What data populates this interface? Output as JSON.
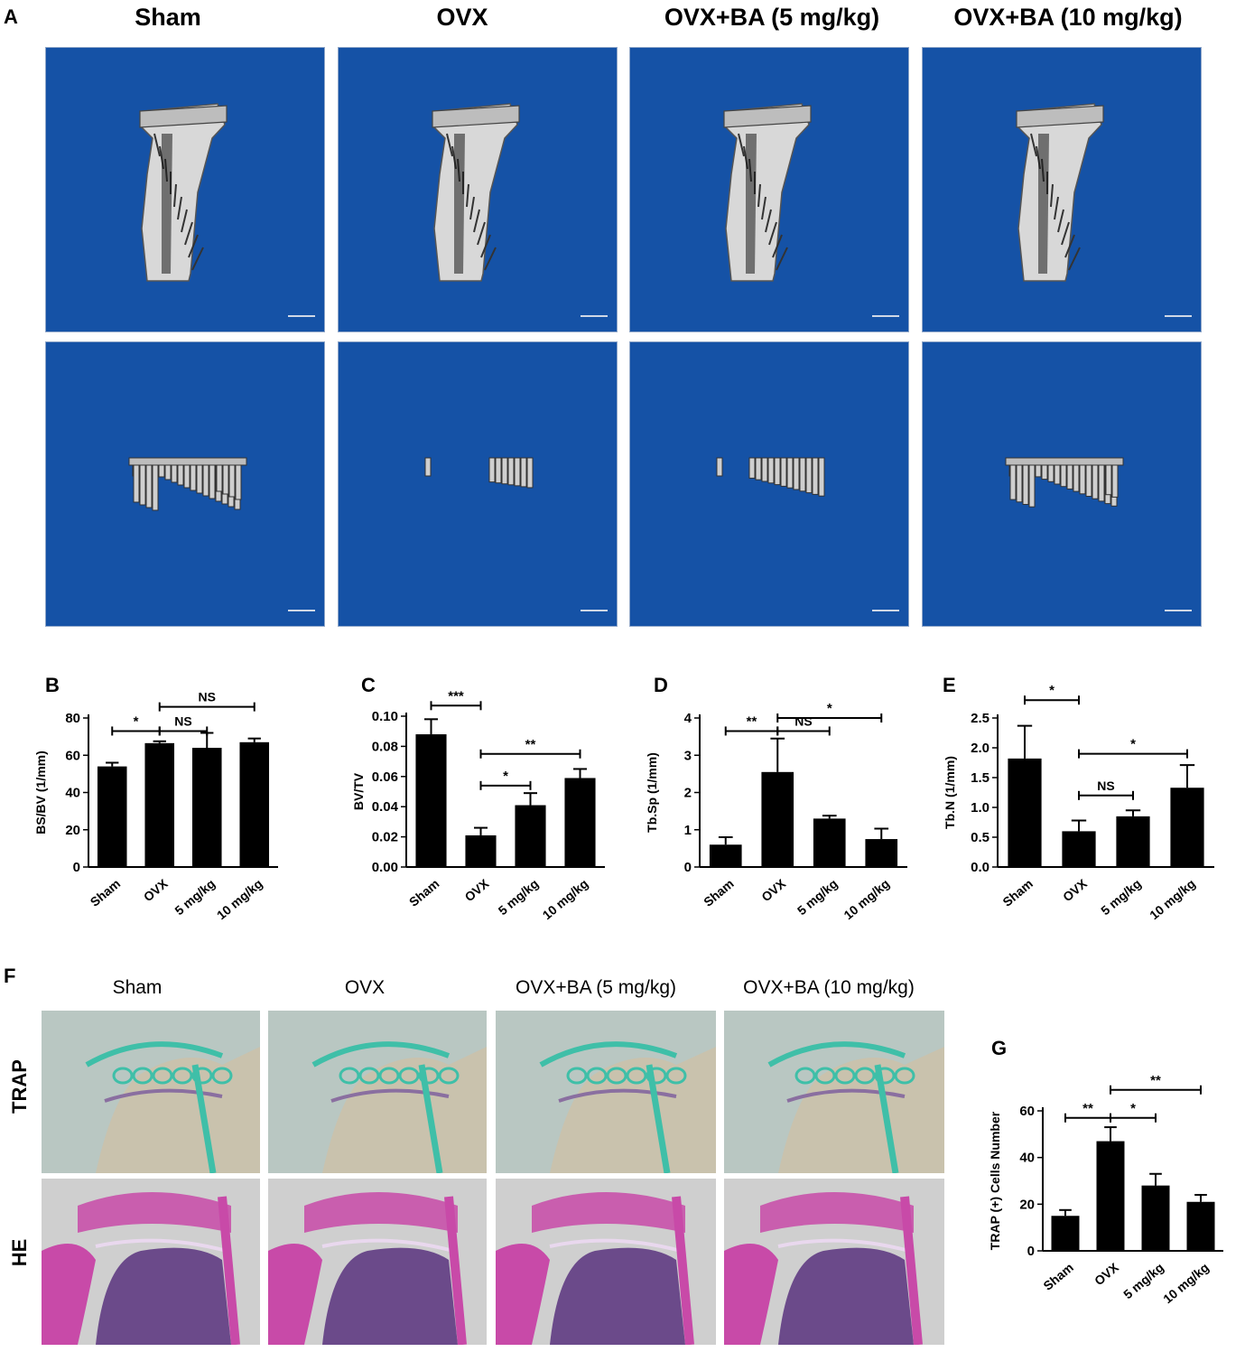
{
  "panel_labels": [
    "A",
    "B",
    "C",
    "D",
    "E",
    "F",
    "G"
  ],
  "panel_a": {
    "columns": [
      "Sham",
      "OVX",
      "OVX+BA (5 mg/kg)",
      "OVX+BA (10 mg/kg)"
    ]
  },
  "panel_f": {
    "columns": [
      "Sham",
      "OVX",
      "OVX+BA (5 mg/kg)",
      "OVX+BA (10 mg/kg)"
    ],
    "rows": [
      "TRAP",
      "HE"
    ]
  },
  "colors": {
    "ct_background": "#1552a6",
    "bar": "#000000",
    "trap_stain": "#3fbfa8",
    "he_stain": "#c84aa8"
  },
  "chart_data": [
    {
      "id": "B",
      "type": "bar",
      "categories": [
        "Sham",
        "OVX",
        "5 mg/kg",
        "10 mg/kg"
      ],
      "values": [
        54,
        66.5,
        64,
        67
      ],
      "errors": [
        2,
        1,
        8,
        2
      ],
      "ylabel": "BS/BV (1/mm)",
      "ylim": [
        0,
        80
      ],
      "yticks": [
        "0",
        "20",
        "40",
        "60",
        "80"
      ],
      "ytick_values": [
        0,
        20,
        40,
        60,
        80
      ],
      "comparisons": [
        {
          "from": 0,
          "to": 1,
          "label": "*",
          "y": 73
        },
        {
          "from": 1,
          "to": 2,
          "label": "NS",
          "y": 73
        },
        {
          "from": 1,
          "to": 3,
          "label": "NS",
          "y": 86
        }
      ]
    },
    {
      "id": "C",
      "type": "bar",
      "categories": [
        "Sham",
        "OVX",
        "5 mg/kg",
        "10 mg/kg"
      ],
      "values": [
        0.088,
        0.021,
        0.041,
        0.059
      ],
      "errors": [
        0.01,
        0.005,
        0.008,
        0.006
      ],
      "ylabel": "BV/TV",
      "ylim": [
        0,
        0.1
      ],
      "yticks": [
        "0.00",
        "0.02",
        "0.04",
        "0.06",
        "0.08",
        "0.10"
      ],
      "ytick_values": [
        0,
        0.02,
        0.04,
        0.06,
        0.08,
        0.1
      ],
      "comparisons": [
        {
          "from": 0,
          "to": 1,
          "label": "***",
          "y": 0.107
        },
        {
          "from": 1,
          "to": 2,
          "label": "*",
          "y": 0.054
        },
        {
          "from": 1,
          "to": 3,
          "label": "**",
          "y": 0.075
        }
      ]
    },
    {
      "id": "D",
      "type": "bar",
      "categories": [
        "Sham",
        "OVX",
        "5 mg/kg",
        "10 mg/kg"
      ],
      "values": [
        0.6,
        2.55,
        1.3,
        0.75
      ],
      "errors": [
        0.2,
        0.9,
        0.08,
        0.28
      ],
      "ylabel": "Tb.Sp (1/mm)",
      "ylim": [
        0,
        4
      ],
      "yticks": [
        "0",
        "1",
        "2",
        "3",
        "4"
      ],
      "ytick_values": [
        0,
        1,
        2,
        3,
        4
      ],
      "comparisons": [
        {
          "from": 0,
          "to": 1,
          "label": "**",
          "y": 3.65
        },
        {
          "from": 1,
          "to": 2,
          "label": "NS",
          "y": 3.65
        },
        {
          "from": 1,
          "to": 3,
          "label": "*",
          "y": 4.0
        }
      ]
    },
    {
      "id": "E",
      "type": "bar",
      "categories": [
        "Sham",
        "OVX",
        "5 mg/kg",
        "10 mg/kg"
      ],
      "values": [
        1.82,
        0.6,
        0.85,
        1.33
      ],
      "errors": [
        0.55,
        0.18,
        0.1,
        0.38
      ],
      "ylabel": "Tb.N (1/mm)",
      "ylim": [
        0,
        2.5
      ],
      "yticks": [
        "0.0",
        "0.5",
        "1.0",
        "1.5",
        "2.0",
        "2.5"
      ],
      "ytick_values": [
        0,
        0.5,
        1.0,
        1.5,
        2.0,
        2.5
      ],
      "comparisons": [
        {
          "from": 0,
          "to": 1,
          "label": "*",
          "y": 2.8
        },
        {
          "from": 1,
          "to": 2,
          "label": "NS",
          "y": 1.2
        },
        {
          "from": 1,
          "to": 3,
          "label": "*",
          "y": 1.9
        }
      ]
    },
    {
      "id": "G",
      "type": "bar",
      "categories": [
        "Sham",
        "OVX",
        "5 mg/kg",
        "10 mg/kg"
      ],
      "values": [
        15,
        47,
        28,
        21
      ],
      "errors": [
        2.5,
        6,
        5,
        3
      ],
      "ylabel": "TRAP (+) Cells Number",
      "ylim": [
        0,
        60
      ],
      "yticks": [
        "0",
        "20",
        "40",
        "60"
      ],
      "ytick_values": [
        0,
        20,
        40,
        60
      ],
      "comparisons": [
        {
          "from": 0,
          "to": 1,
          "label": "**",
          "y": 57
        },
        {
          "from": 1,
          "to": 2,
          "label": "*",
          "y": 57
        },
        {
          "from": 1,
          "to": 3,
          "label": "**",
          "y": 69
        }
      ]
    }
  ]
}
